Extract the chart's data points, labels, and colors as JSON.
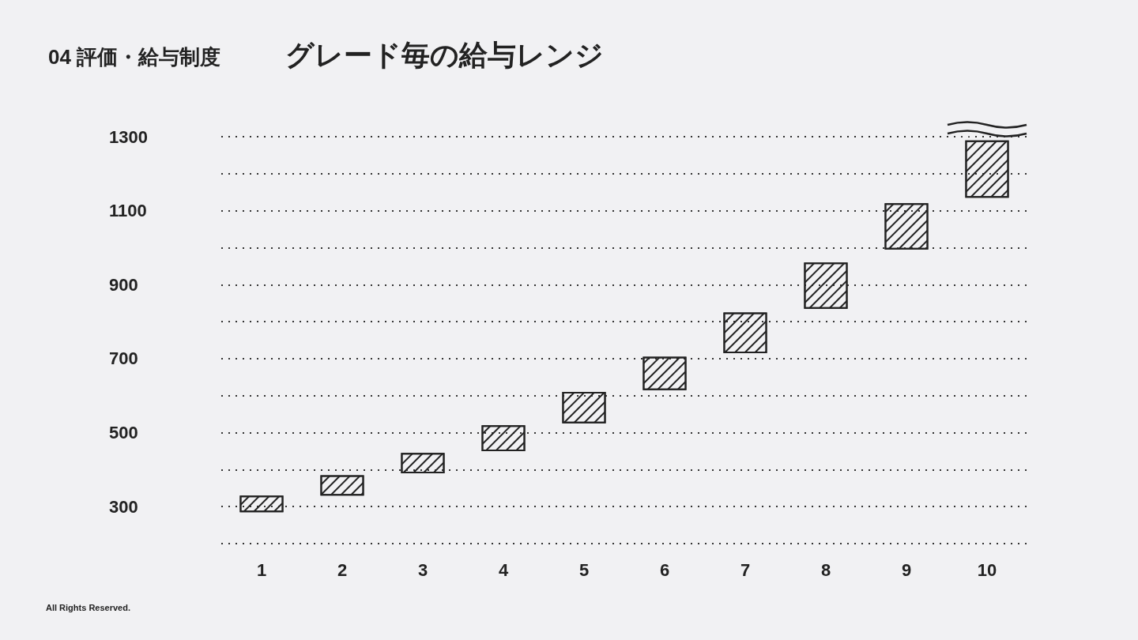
{
  "chart_data": {
    "type": "bar",
    "title": "グレード毎の給与レンジ",
    "subtitle": "04 評価・給与制度",
    "categories": [
      "1",
      "2",
      "3",
      "4",
      "5",
      "6",
      "7",
      "8",
      "9",
      "10"
    ],
    "base": [
      285,
      330,
      390,
      450,
      525,
      615,
      715,
      835,
      995,
      1135
    ],
    "values": [
      45,
      55,
      55,
      70,
      85,
      90,
      110,
      125,
      125,
      155
    ],
    "color": "#222222",
    "ylim": [
      200,
      1300
    ],
    "yticks": [
      {
        "value": 200,
        "label": null
      },
      300,
      {
        "value": 400,
        "label": null
      },
      500,
      {
        "value": 600,
        "label": null
      },
      700,
      {
        "value": 800,
        "label": null
      },
      900,
      {
        "value": 1000,
        "label": null
      },
      1100,
      {
        "value": 1200,
        "label": null
      },
      1300
    ],
    "grid": "y",
    "annotations": [
      "All Rights Reserved."
    ]
  }
}
